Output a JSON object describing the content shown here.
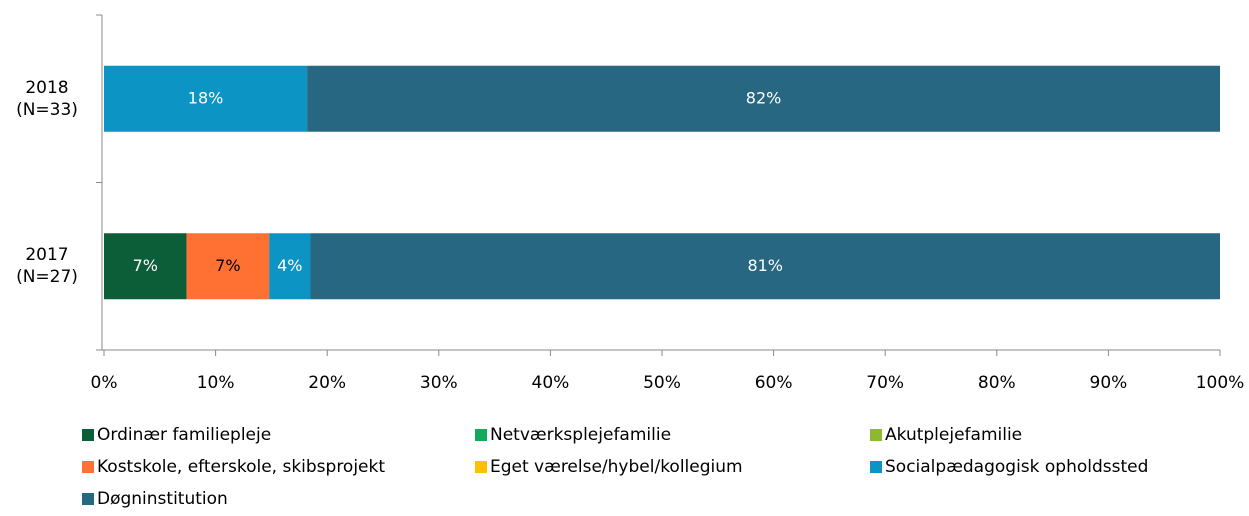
{
  "chart_data": {
    "type": "stacked_barh",
    "categories": [
      "2018\n(N=33)",
      "2017\n(N=27)"
    ],
    "series": [
      {
        "name": "Ordinær familiepleje",
        "color": "#0b5e38",
        "label_color": "#ffffff",
        "values": [
          0,
          7.4
        ],
        "value_labels": [
          null,
          "7%"
        ]
      },
      {
        "name": "Netværksplejefamilie",
        "color": "#12a85e",
        "label_color": "#ffffff",
        "values": [
          0,
          0
        ],
        "value_labels": [
          null,
          null
        ]
      },
      {
        "name": "Akutplejefamilie",
        "color": "#8cb92f",
        "label_color": "#ffffff",
        "values": [
          0,
          0
        ],
        "value_labels": [
          null,
          null
        ]
      },
      {
        "name": "Kostskole, efterskole, skibsprojekt",
        "color": "#ff7033",
        "label_color": "#000000",
        "values": [
          0,
          7.4
        ],
        "value_labels": [
          null,
          "7%"
        ]
      },
      {
        "name": "Eget værelse/hybel/kollegium",
        "color": "#ffc000",
        "label_color": "#000000",
        "values": [
          0,
          0
        ],
        "value_labels": [
          null,
          null
        ]
      },
      {
        "name": "Socialpædagogisk opholdssted",
        "color": "#0c95c4",
        "label_color": "#ffffff",
        "values": [
          18.2,
          3.7
        ],
        "value_labels": [
          "18%",
          "4%"
        ]
      },
      {
        "name": "Døgninstitution",
        "color": "#276782",
        "label_color": "#ffffff",
        "values": [
          81.8,
          81.5
        ],
        "value_labels": [
          "82%",
          "81%"
        ]
      }
    ],
    "xlim": [
      0,
      100
    ],
    "xticks": [
      {
        "value": 0,
        "label": "0%"
      },
      {
        "value": 10,
        "label": "10%"
      },
      {
        "value": 20,
        "label": "20%"
      },
      {
        "value": 30,
        "label": "30%"
      },
      {
        "value": 40,
        "label": "40%"
      },
      {
        "value": 50,
        "label": "50%"
      },
      {
        "value": 60,
        "label": "60%"
      },
      {
        "value": 70,
        "label": "70%"
      },
      {
        "value": 80,
        "label": "80%"
      },
      {
        "value": 90,
        "label": "90%"
      },
      {
        "value": 100,
        "label": "100%"
      }
    ],
    "legend": "bottom"
  }
}
